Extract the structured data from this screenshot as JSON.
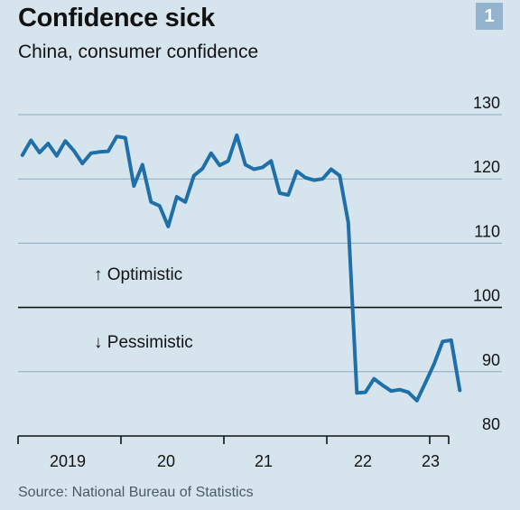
{
  "header": {
    "title": "Confidence sick",
    "subtitle": "China, consumer confidence",
    "chart_number": "1"
  },
  "footer": {
    "source": "Source: National Bureau of Statistics"
  },
  "colors": {
    "background": "#d6e4ee",
    "line": "#1f6fa8",
    "gridline": "#8aa9bf",
    "baseline": "#121212",
    "badge": "#93b4cc"
  },
  "chart_data": {
    "type": "line",
    "title": "Confidence sick",
    "subtitle": "China, consumer confidence",
    "xlabel": "",
    "ylabel": "",
    "ylim": [
      80,
      130
    ],
    "yticks": [
      80,
      90,
      100,
      110,
      120,
      130
    ],
    "y_axis_position": "right",
    "grid": "horizontal",
    "reference_line": 100,
    "x_tick_labels": [
      "2019",
      "20",
      "21",
      "22",
      "23"
    ],
    "annotations": [
      "↑ Optimistic",
      "↓ Pessimistic"
    ],
    "series": [
      {
        "x": [
          "2019-01",
          "2019-02",
          "2019-03",
          "2019-04",
          "2019-05",
          "2019-06",
          "2019-07",
          "2019-08",
          "2019-09",
          "2019-10",
          "2019-11",
          "2019-12",
          "2020-01",
          "2020-02",
          "2020-03",
          "2020-04",
          "2020-05",
          "2020-06",
          "2020-07",
          "2020-08",
          "2020-09",
          "2020-10",
          "2020-11",
          "2020-12",
          "2021-01",
          "2021-02",
          "2021-03",
          "2021-04",
          "2021-05",
          "2021-06",
          "2021-07",
          "2021-08",
          "2021-09",
          "2021-10",
          "2021-11",
          "2021-12",
          "2022-01",
          "2022-02",
          "2022-03",
          "2022-04",
          "2022-05",
          "2022-06",
          "2022-07",
          "2022-08",
          "2022-09",
          "2022-10",
          "2022-11",
          "2022-12",
          "2023-01",
          "2023-02",
          "2023-03",
          "2023-04"
        ],
        "values": [
          123.7,
          126.0,
          124.1,
          125.5,
          123.6,
          125.9,
          124.4,
          122.4,
          124.0,
          124.2,
          124.3,
          126.6,
          126.4,
          118.9,
          122.2,
          116.4,
          115.8,
          112.6,
          117.2,
          116.4,
          120.5,
          121.6,
          124.0,
          122.1,
          122.8,
          126.8,
          122.2,
          121.5,
          121.8,
          122.8,
          117.8,
          117.5,
          121.2,
          120.2,
          119.8,
          120.0,
          121.5,
          120.5,
          113.2,
          86.7,
          86.8,
          88.9,
          87.9,
          87.0,
          87.2,
          86.8,
          85.5,
          88.3,
          91.2,
          94.7,
          94.9,
          87.1
        ]
      }
    ]
  }
}
